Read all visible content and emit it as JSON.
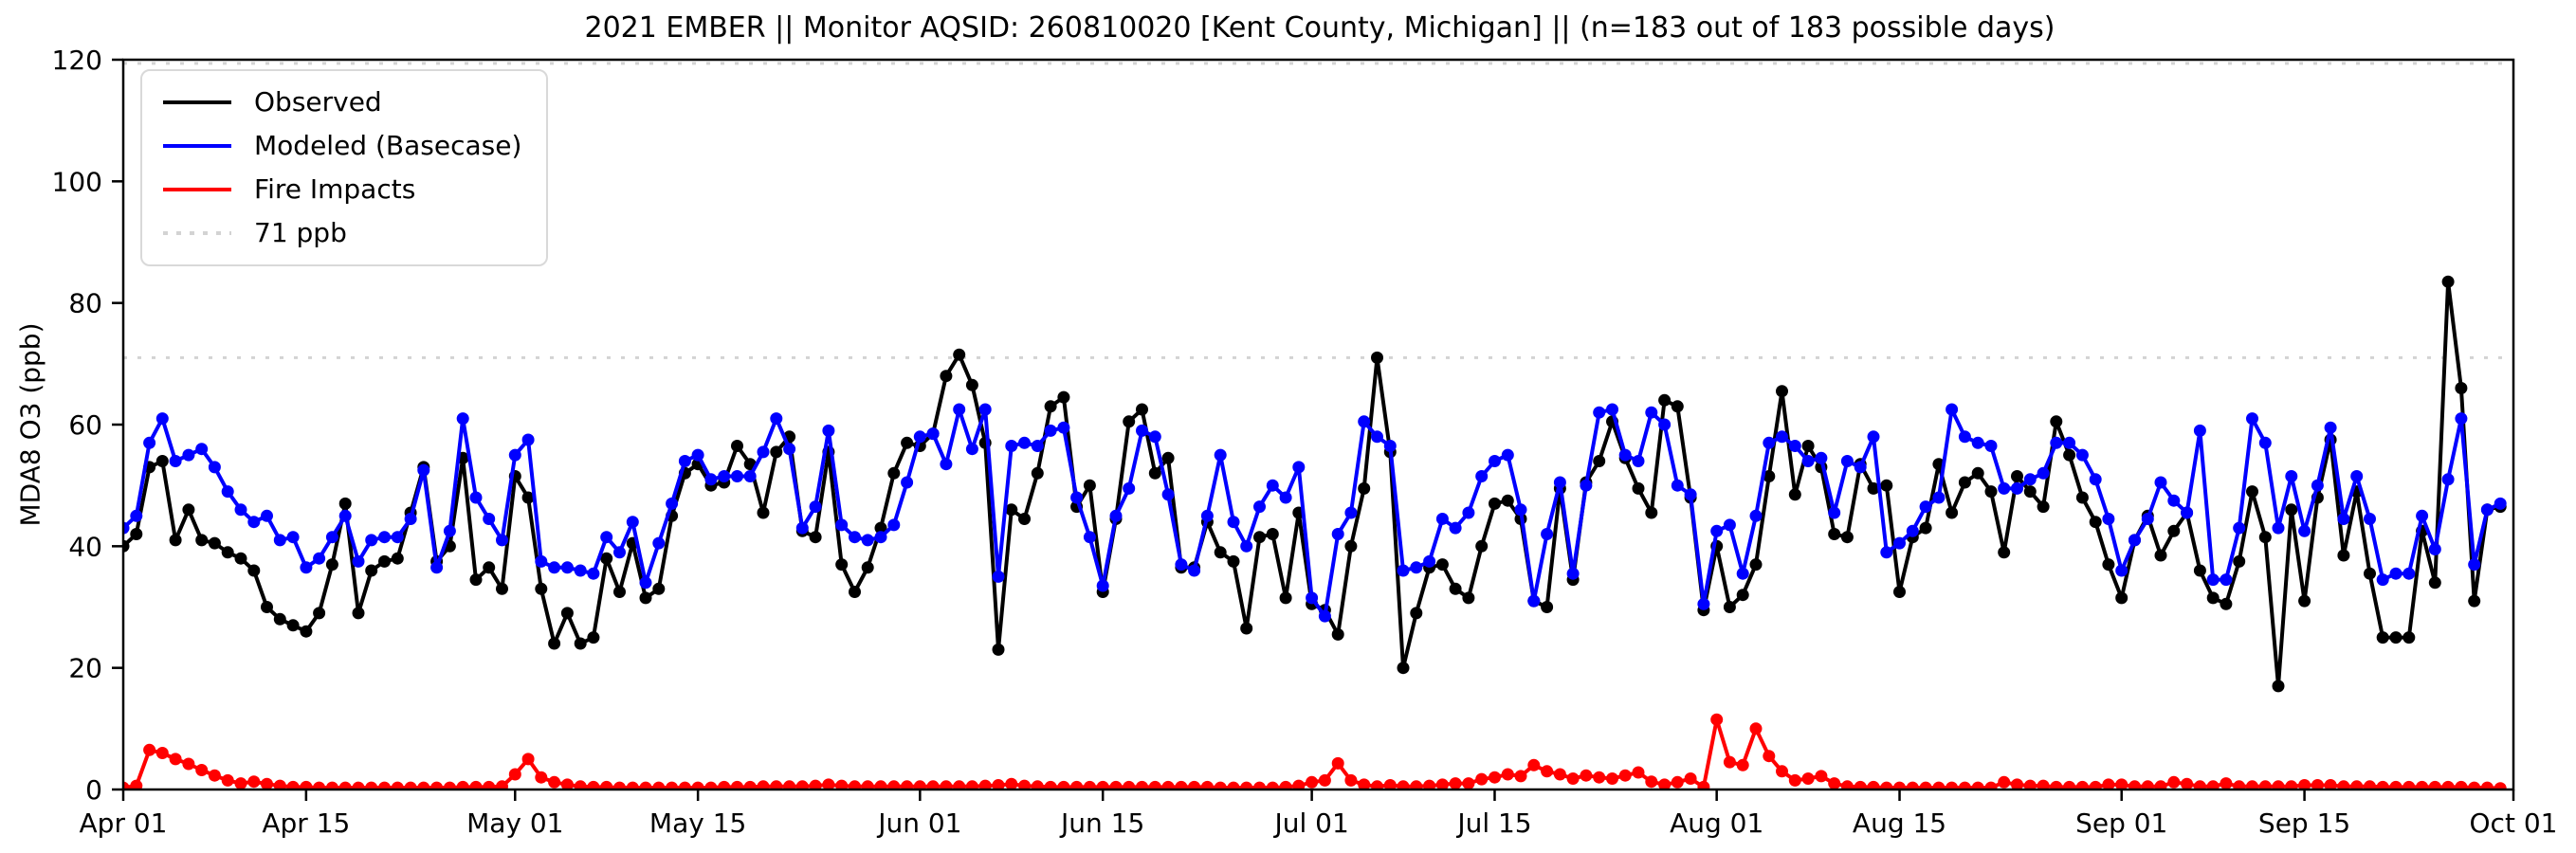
{
  "chart_data": {
    "type": "line",
    "title": "2021 EMBER || Monitor AQSID: 260810020 [Kent County, Michigan] || (n=183 out of 183 possible days)",
    "ylabel": "MDA8 O3 (ppb)",
    "ylim": [
      0,
      120
    ],
    "yticks": [
      0,
      20,
      40,
      60,
      80,
      100,
      120
    ],
    "xtick_labels": [
      "Apr 01",
      "Apr 15",
      "May 01",
      "May 15",
      "Jun 01",
      "Jun 15",
      "Jul 01",
      "Jul 15",
      "Aug 01",
      "Aug 15",
      "Sep 01",
      "Sep 15",
      "Oct 01"
    ],
    "xtick_days": [
      0,
      14,
      30,
      44,
      61,
      75,
      91,
      105,
      122,
      136,
      153,
      167,
      183
    ],
    "x_span_days": 183,
    "date_range": {
      "start": "Apr 01",
      "end": "Sep 30",
      "n_days": 183
    },
    "grid": false,
    "legend_position": "upper left",
    "series": [
      {
        "name": "Observed",
        "color": "#000000",
        "marker": "circle",
        "values": [
          40,
          42,
          53,
          54,
          41,
          46,
          41,
          40.5,
          39,
          38,
          36,
          30,
          28,
          27,
          26,
          29,
          37,
          47,
          29,
          36,
          37.5,
          38,
          45.5,
          53,
          37.5,
          40,
          54.5,
          34.5,
          36.5,
          33,
          51.5,
          48,
          33,
          24,
          29,
          24,
          25,
          38,
          32.5,
          40.5,
          31.5,
          33,
          45,
          52,
          53.5,
          50,
          50.5,
          56.5,
          53.5,
          45.5,
          55.5,
          58,
          42.5,
          41.5,
          55.5,
          37,
          32.5,
          36.5,
          43,
          52,
          57,
          56.5,
          58.5,
          68,
          71.5,
          66.5,
          57,
          23,
          46,
          44.5,
          52,
          63,
          64.5,
          46.5,
          50,
          32.5,
          44.5,
          60.5,
          62.5,
          52,
          54.5,
          36.5,
          36.5,
          44,
          39,
          37.5,
          26.5,
          41.5,
          42,
          31.5,
          45.5,
          30.5,
          29.5,
          25.5,
          40,
          49.5,
          71,
          55.5,
          20,
          29,
          36.5,
          37,
          33,
          31.5,
          40,
          47,
          47.5,
          44.5,
          31,
          30,
          49.5,
          34.5,
          50.5,
          54,
          60.5,
          54.5,
          49.5,
          45.5,
          64,
          63,
          48,
          29.5,
          40,
          30,
          32,
          37,
          51.5,
          65.5,
          48.5,
          56.5,
          53,
          42,
          41.5,
          53.5,
          49.5,
          50,
          32.5,
          41.5,
          43,
          53.5,
          45.5,
          50.5,
          52,
          49,
          39,
          51.5,
          49,
          46.5,
          60.5,
          55,
          48,
          44,
          37,
          31.5,
          41,
          45,
          38.5,
          42.5,
          45.5,
          36,
          31.5,
          30.5,
          37.5,
          49,
          41.5,
          17,
          46,
          31,
          48,
          57.5,
          38.5,
          49,
          35.5,
          25,
          25,
          25,
          42.5,
          34,
          83.5,
          66,
          31,
          46,
          46.5
        ]
      },
      {
        "name": "Modeled (Basecase)",
        "color": "#0000ff",
        "marker": "circle",
        "values": [
          43,
          45,
          57,
          61,
          54,
          55,
          56,
          53,
          49,
          46,
          44,
          45,
          41,
          41.5,
          36.5,
          38,
          41.5,
          45,
          37.5,
          41,
          41.5,
          41.5,
          44.5,
          52.5,
          36.5,
          42.5,
          61,
          48,
          44.5,
          41,
          55,
          57.5,
          37.5,
          36.5,
          36.5,
          36,
          35.5,
          41.5,
          39,
          44,
          34,
          40.5,
          47,
          54,
          55,
          51,
          51.5,
          51.5,
          51.5,
          55.5,
          61,
          56,
          43,
          46.5,
          59,
          43.5,
          41.5,
          41,
          41.5,
          43.5,
          50.5,
          58,
          58.5,
          53.5,
          62.5,
          56,
          62.5,
          35,
          56.5,
          57,
          56.5,
          59,
          59.5,
          48,
          41.5,
          33.5,
          45,
          49.5,
          59,
          58,
          48.5,
          37,
          36,
          45,
          55,
          44,
          40,
          46.5,
          50,
          48,
          53,
          31.5,
          28.5,
          42,
          45.5,
          60.5,
          58,
          56.5,
          36,
          36.5,
          37.5,
          44.5,
          43,
          45.5,
          51.5,
          54,
          55,
          46,
          31,
          42,
          50.5,
          35.5,
          50,
          62,
          62.5,
          55,
          54,
          62,
          60,
          50,
          48.5,
          30.5,
          42.5,
          43.5,
          35.5,
          45,
          57,
          58,
          56.5,
          54,
          54.5,
          45.5,
          54,
          53,
          58,
          39,
          40.5,
          42.5,
          46.5,
          48,
          62.5,
          58,
          57,
          56.5,
          49.5,
          49.5,
          51,
          52,
          57,
          57,
          55,
          51,
          44.5,
          36,
          41,
          44.5,
          50.5,
          47.5,
          45.5,
          59,
          34.5,
          34.5,
          43,
          61,
          57,
          43,
          51.5,
          42.5,
          50,
          59.5,
          44.5,
          51.5,
          44.5,
          34.5,
          35.5,
          35.5,
          45,
          39.5,
          51,
          61,
          37,
          46,
          47
        ]
      },
      {
        "name": "Fire Impacts",
        "color": "#ff0000",
        "marker": "circle",
        "values": [
          0.3,
          0.6,
          6.5,
          6.0,
          5.0,
          4.2,
          3.2,
          2.3,
          1.5,
          1.0,
          1.3,
          0.9,
          0.6,
          0.4,
          0.4,
          0.3,
          0.3,
          0.3,
          0.3,
          0.3,
          0.3,
          0.3,
          0.3,
          0.3,
          0.3,
          0.3,
          0.4,
          0.4,
          0.4,
          0.5,
          2.5,
          5.0,
          2.0,
          1.2,
          0.8,
          0.5,
          0.4,
          0.4,
          0.3,
          0.3,
          0.3,
          0.3,
          0.3,
          0.3,
          0.3,
          0.3,
          0.4,
          0.4,
          0.4,
          0.5,
          0.5,
          0.5,
          0.5,
          0.6,
          0.8,
          0.6,
          0.5,
          0.5,
          0.5,
          0.5,
          0.5,
          0.5,
          0.5,
          0.5,
          0.5,
          0.5,
          0.6,
          0.7,
          0.9,
          0.6,
          0.5,
          0.4,
          0.4,
          0.4,
          0.4,
          0.4,
          0.4,
          0.4,
          0.4,
          0.4,
          0.4,
          0.4,
          0.4,
          0.4,
          0.3,
          0.3,
          0.3,
          0.3,
          0.3,
          0.4,
          0.6,
          1.2,
          1.5,
          4.3,
          1.5,
          0.8,
          0.5,
          0.7,
          0.5,
          0.5,
          0.6,
          0.8,
          1.0,
          1.0,
          1.7,
          2.0,
          2.5,
          2.2,
          4.0,
          3.0,
          2.5,
          1.8,
          2.3,
          2.0,
          1.8,
          2.3,
          2.8,
          1.3,
          0.8,
          1.2,
          1.8,
          0.4,
          11.5,
          4.5,
          4.0,
          10.0,
          5.5,
          3.0,
          1.5,
          1.8,
          2.2,
          1.0,
          0.5,
          0.4,
          0.4,
          0.3,
          0.3,
          0.3,
          0.3,
          0.3,
          0.3,
          0.3,
          0.3,
          0.3,
          1.2,
          0.8,
          0.6,
          0.6,
          0.4,
          0.4,
          0.4,
          0.4,
          0.8,
          0.8,
          0.5,
          0.5,
          0.5,
          1.2,
          0.9,
          0.5,
          0.5,
          1.0,
          0.5,
          0.5,
          0.5,
          0.5,
          0.5,
          0.7,
          0.7,
          0.7,
          0.5,
          0.5,
          0.5,
          0.4,
          0.4,
          0.4,
          0.4,
          0.4,
          0.4,
          0.4,
          0.3,
          0.3,
          0.2
        ]
      }
    ],
    "reference_lines": [
      {
        "name": "71 ppb",
        "value": 71,
        "color": "#d3d3d3",
        "style": "dotted",
        "in_legend": true
      },
      {
        "name": "top dotted line",
        "value": 119.4,
        "color": "#d3d3d3",
        "style": "dotted",
        "in_legend": false
      }
    ],
    "legend_entries": [
      "Observed",
      "Modeled (Basecase)",
      "Fire Impacts",
      "71 ppb"
    ]
  }
}
